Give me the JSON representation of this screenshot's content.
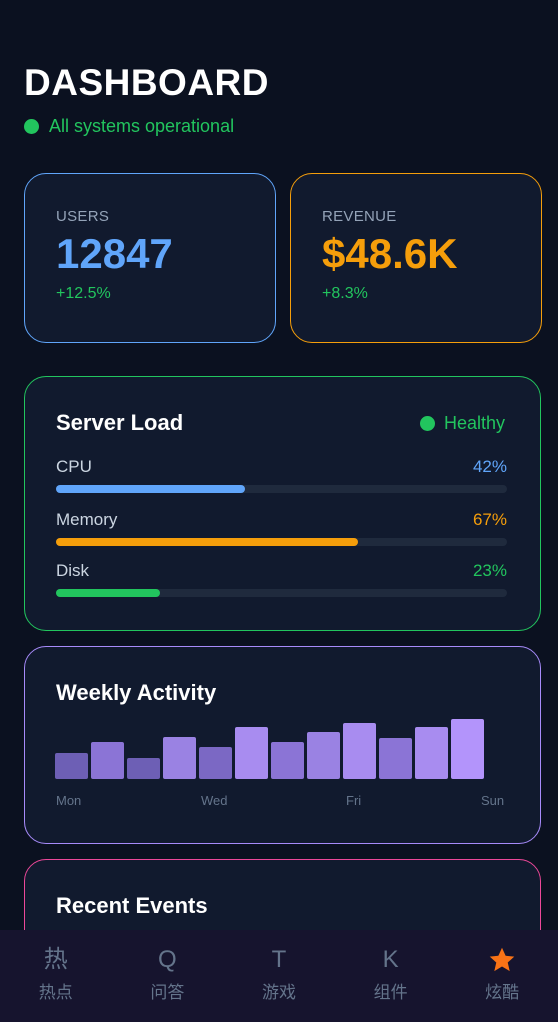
{
  "header": {
    "title": "DASHBOARD",
    "status": "All systems operational"
  },
  "stats": [
    {
      "label": "USERS",
      "value": "12847",
      "change": "+12.5%",
      "color": "#60a5fa"
    },
    {
      "label": "REVENUE",
      "value": "$48.6K",
      "change": "+8.3%",
      "color": "#f59e0b"
    }
  ],
  "server_load": {
    "title": "Server Load",
    "health": "Healthy",
    "meters": [
      {
        "label": "CPU",
        "value_text": "42%",
        "percent": 42,
        "color": "#60a5fa"
      },
      {
        "label": "Memory",
        "value_text": "67%",
        "percent": 67,
        "color": "#f59e0b"
      },
      {
        "label": "Disk",
        "value_text": "23%",
        "percent": 23,
        "color": "#22c55e"
      }
    ]
  },
  "weekly_activity": {
    "title": "Weekly Activity",
    "day_labels": [
      "Mon",
      "Wed",
      "Fri",
      "Sun"
    ]
  },
  "chart_data": {
    "type": "bar",
    "values": [
      21,
      30,
      17,
      34,
      26,
      42,
      30,
      38,
      45,
      33,
      42,
      48
    ],
    "ylim": [
      0,
      50
    ],
    "grid": false
  },
  "recent_events": {
    "title": "Recent Events"
  },
  "tabbar": {
    "items": [
      {
        "icon": "热",
        "label": "热点",
        "active": false
      },
      {
        "icon": "Q",
        "label": "问答",
        "active": false
      },
      {
        "icon": "T",
        "label": "游戏",
        "active": false
      },
      {
        "icon": "K",
        "label": "组件",
        "active": false
      },
      {
        "icon": "star-icon",
        "label": "炫酷",
        "active": true
      }
    ],
    "active_color": "#f97316"
  }
}
